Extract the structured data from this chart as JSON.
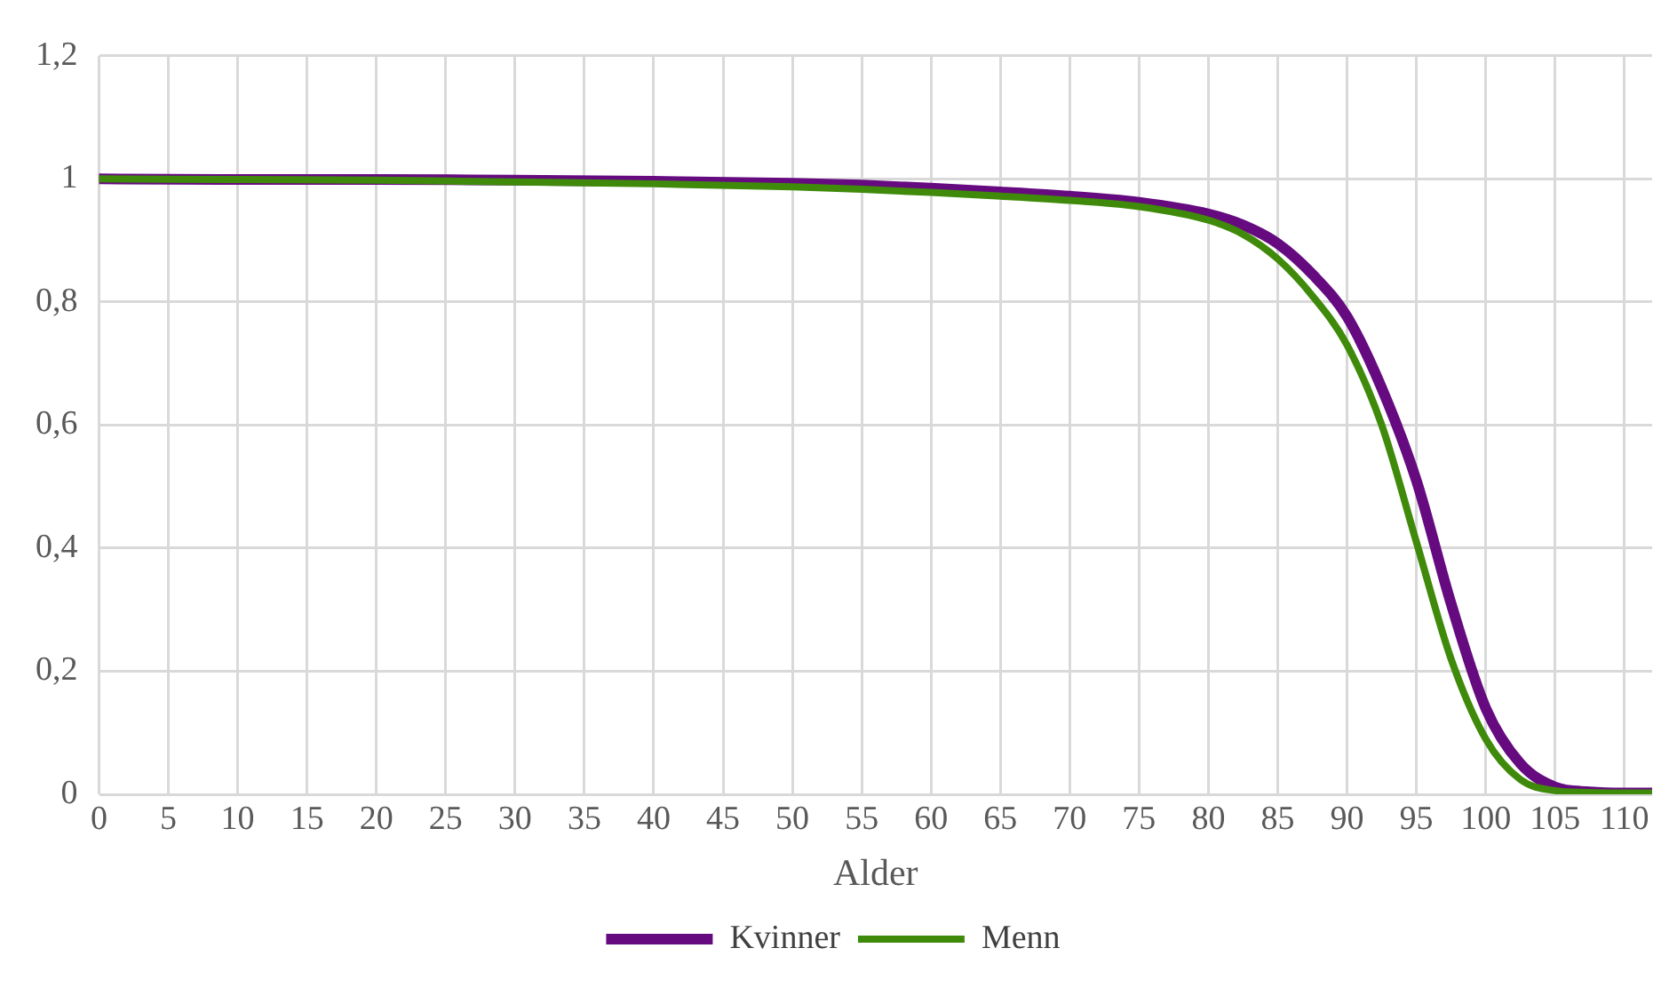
{
  "chart_data": {
    "type": "line",
    "xlabel": "Alder",
    "x": [
      0,
      10,
      20,
      30,
      40,
      50,
      55,
      60,
      65,
      70,
      75,
      80,
      82.5,
      85,
      87.5,
      90,
      92.5,
      95,
      97.5,
      100,
      102.5,
      105,
      107.5,
      110,
      112
    ],
    "series": [
      {
        "name": "Kvinner",
        "color": "#660a80",
        "values": [
          1,
          0.999,
          0.999,
          0.998,
          0.996,
          0.993,
          0.99,
          0.985,
          0.979,
          0.972,
          0.962,
          0.943,
          0.925,
          0.895,
          0.845,
          0.776,
          0.66,
          0.51,
          0.31,
          0.14,
          0.05,
          0.012,
          0.004,
          0.002,
          0.002
        ]
      },
      {
        "name": "Menn",
        "color": "#3f8a0a",
        "values": [
          1,
          0.999,
          0.998,
          0.995,
          0.992,
          0.987,
          0.983,
          0.978,
          0.972,
          0.965,
          0.955,
          0.933,
          0.91,
          0.87,
          0.81,
          0.73,
          0.6,
          0.41,
          0.22,
          0.09,
          0.024,
          0.006,
          0.003,
          0.002,
          0.002
        ]
      }
    ],
    "xlim": [
      0,
      112
    ],
    "xticks": [
      0,
      5,
      10,
      15,
      20,
      25,
      30,
      35,
      40,
      45,
      50,
      55,
      60,
      65,
      70,
      75,
      80,
      85,
      90,
      95,
      100,
      105,
      110
    ],
    "ylim": [
      0,
      1.2
    ],
    "yticks": [
      0,
      {
        "value": 0.2,
        "label": "0,2"
      },
      {
        "value": 0.4,
        "label": "0,4"
      },
      {
        "value": 0.6,
        "label": "0,6"
      },
      {
        "value": 0.8,
        "label": "0,8"
      },
      1,
      {
        "value": 1.2,
        "label": "1,2"
      }
    ],
    "grid": true,
    "legend": "bottom",
    "marker": "none",
    "line_style": "solid"
  }
}
